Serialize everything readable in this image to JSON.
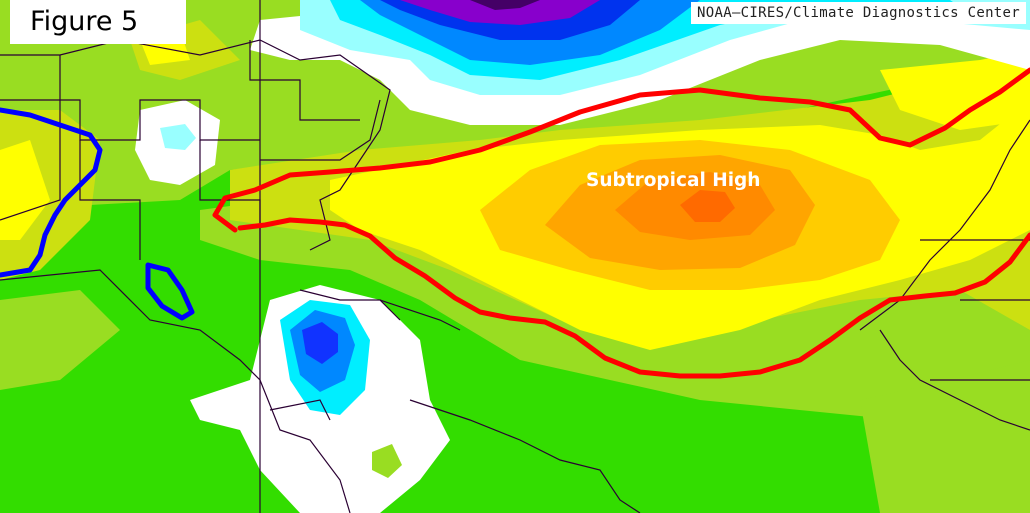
{
  "figure": {
    "label": "Figure 5"
  },
  "credit": {
    "text": "NOAA–CIRES/Climate Diagnostics Center"
  },
  "annotations": {
    "subtropical_high": "Subtropical High"
  },
  "colors": {
    "ocean_background": "#33dd00",
    "light_green": "#99dd22",
    "yellow_green": "#cce011",
    "yellow": "#ffff00",
    "light_orange": "#ffcc00",
    "orange": "#ffa500",
    "dark_orange": "#ff7a00",
    "white": "#ffffff",
    "cyan_light": "#99ffff",
    "cyan": "#00eeff",
    "blue_light": "#0088ff",
    "blue": "#0033ee",
    "purple": "#8800cc",
    "contour_red": "#ff0000",
    "contour_blue": "#0000ff",
    "boundary_lines": "#2a0033"
  }
}
